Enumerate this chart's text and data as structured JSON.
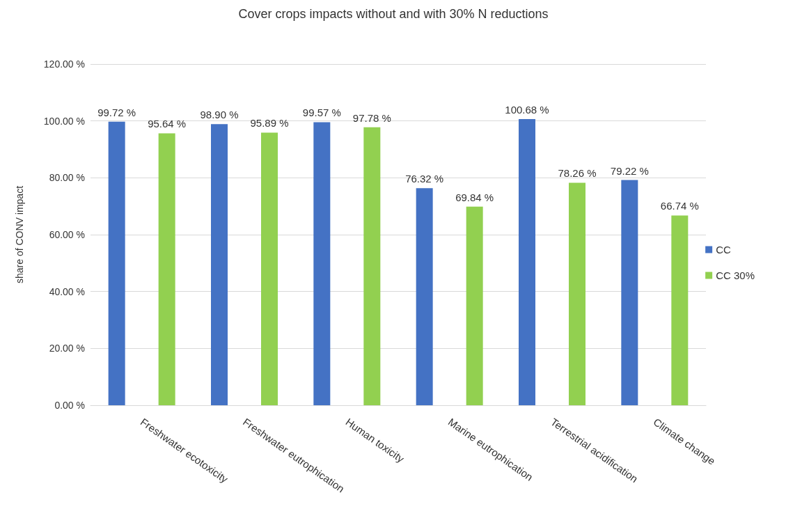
{
  "chart_data": {
    "type": "bar",
    "title": "Cover crops impacts without and with 30% N reductions",
    "ylabel": "share of CONV impact",
    "categories": [
      "Freshwater ecotoxicity",
      "Freshwater eutrophication",
      "Human toxicity",
      "Marine eutrophication",
      "Terrestrial acidification",
      "Climate change"
    ],
    "series": [
      {
        "name": "CC",
        "color": "#4472c4",
        "values": [
          99.72,
          98.9,
          99.57,
          76.32,
          100.68,
          79.22
        ],
        "value_labels": [
          "99.72 %",
          "98.90 %",
          "99.57 %",
          "76.32 %",
          "100.68 %",
          "79.22 %"
        ]
      },
      {
        "name": "CC 30%",
        "color": "#92d050",
        "values": [
          95.64,
          95.89,
          97.78,
          69.84,
          78.26,
          66.74
        ],
        "value_labels": [
          "95.64 %",
          "95.89 %",
          "97.78 %",
          "69.84 %",
          "78.26 %",
          "66.74 %"
        ]
      }
    ],
    "ylim": [
      0,
      120
    ],
    "yticks": [
      {
        "value": 0,
        "label": "0.00 %"
      },
      {
        "value": 20,
        "label": "20.00 %"
      },
      {
        "value": 40,
        "label": "40.00 %"
      },
      {
        "value": 60,
        "label": "60.00 %"
      },
      {
        "value": 80,
        "label": "80.00 %"
      },
      {
        "value": 100,
        "label": "100.00 %"
      },
      {
        "value": 120,
        "label": "120.00 %"
      }
    ],
    "grid": "y",
    "legend": "right"
  }
}
